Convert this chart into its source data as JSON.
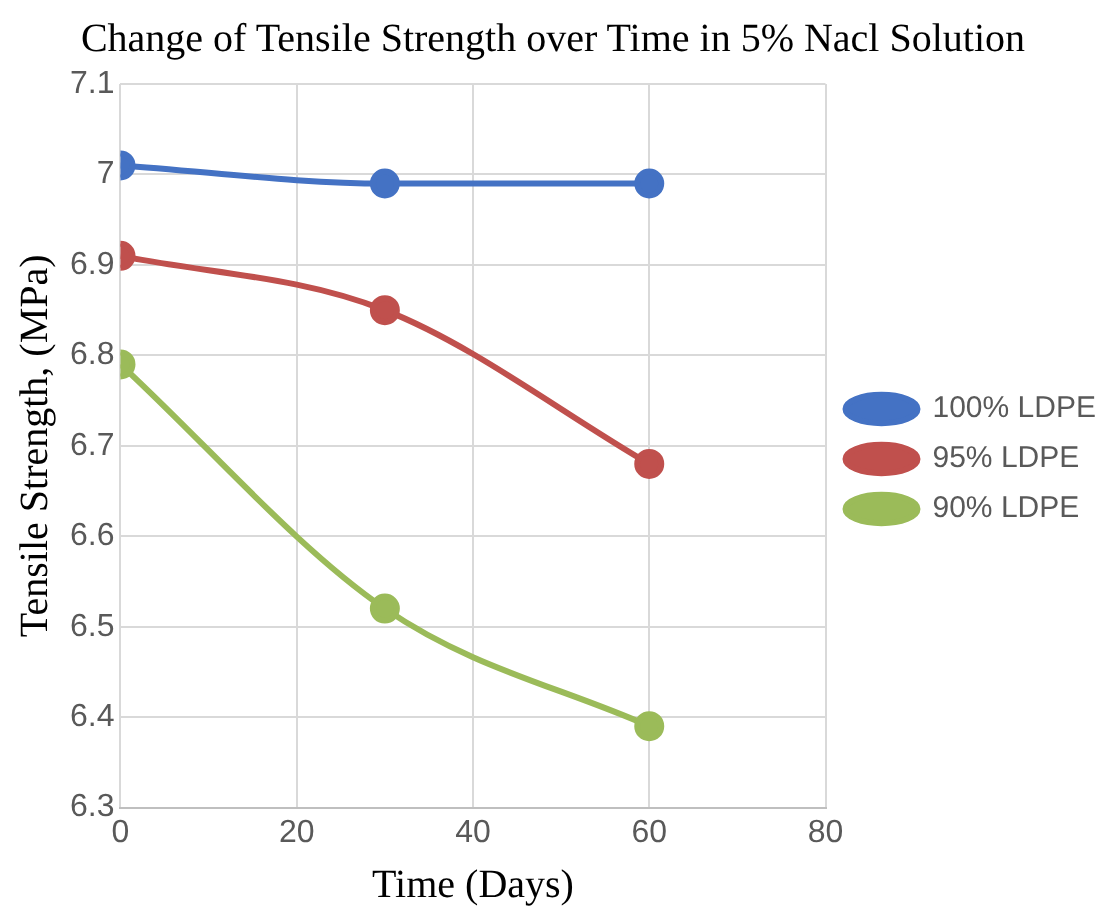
{
  "chart_data": {
    "type": "line",
    "title": "Change of Tensile Strength over Time in 5% Nacl Solution",
    "xlabel": "Time (Days)",
    "ylabel": "Tensile Strength, (MPa)",
    "x": [
      0,
      30,
      60
    ],
    "series": [
      {
        "name": "100% LDPE",
        "color": "#4472c4",
        "values": [
          7.01,
          6.99,
          6.99
        ]
      },
      {
        "name": "95% LDPE",
        "color": "#c0504d",
        "values": [
          6.91,
          6.85,
          6.68
        ]
      },
      {
        "name": "90% LDPE",
        "color": "#9bbb59",
        "values": [
          6.79,
          6.52,
          6.39
        ]
      }
    ],
    "xlim": [
      0,
      80
    ],
    "xticks": [
      0,
      20,
      40,
      60,
      80
    ],
    "ylim": [
      6.3,
      7.1
    ],
    "yticks": [
      6.3,
      6.4,
      6.5,
      6.6,
      6.7,
      6.8,
      6.9,
      7,
      7.1
    ],
    "grid": true,
    "legend": "right",
    "marker": "circle",
    "line_style": "solid"
  }
}
